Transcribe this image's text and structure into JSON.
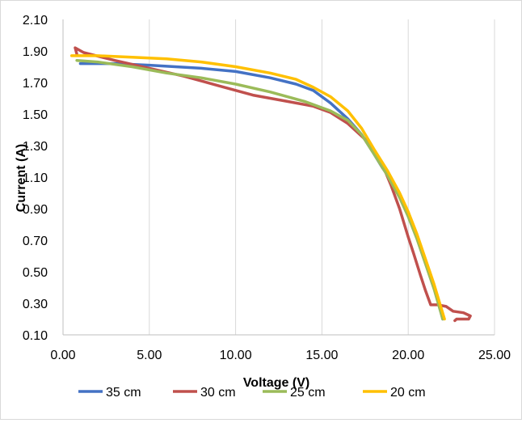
{
  "chart_data": {
    "type": "line",
    "title": "",
    "xlabel": "Voltage (V)",
    "ylabel": "Current (A)",
    "xlim": [
      0,
      25
    ],
    "ylim": [
      0.1,
      2.1
    ],
    "x_ticks": [
      "0.00",
      "5.00",
      "10.00",
      "15.00",
      "20.00",
      "25.00"
    ],
    "y_ticks": [
      "0.10",
      "0.30",
      "0.50",
      "0.70",
      "0.90",
      "1.10",
      "1.30",
      "1.50",
      "1.70",
      "1.90",
      "2.10"
    ],
    "grid": "vertical",
    "legend_position": "bottom",
    "series": [
      {
        "name": "35 cm",
        "color": "#4472c4",
        "x": [
          1.0,
          3.0,
          5.0,
          8.0,
          10.0,
          12.0,
          13.5,
          14.5,
          15.5,
          16.5,
          17.3,
          18.0,
          18.5,
          19.0,
          19.5,
          20.0,
          20.5,
          21.0,
          21.5,
          22.0
        ],
        "y": [
          1.82,
          1.82,
          1.81,
          1.79,
          1.77,
          1.73,
          1.69,
          1.65,
          1.57,
          1.47,
          1.37,
          1.25,
          1.16,
          1.08,
          0.98,
          0.86,
          0.72,
          0.57,
          0.41,
          0.2
        ]
      },
      {
        "name": "30 cm",
        "color": "#c0504d",
        "x": [
          0.8,
          0.7,
          1.2,
          3.0,
          5.0,
          7.0,
          9.0,
          11.0,
          13.0,
          14.5,
          15.5,
          16.5,
          17.5,
          18.5,
          19.0,
          19.5,
          20.0,
          20.3,
          20.7,
          21.0,
          21.3,
          21.7,
          22.2,
          22.6,
          23.2,
          23.6,
          23.5,
          22.8,
          22.7
        ],
        "y": [
          1.88,
          1.92,
          1.89,
          1.84,
          1.79,
          1.74,
          1.68,
          1.62,
          1.58,
          1.55,
          1.51,
          1.44,
          1.34,
          1.18,
          1.05,
          0.9,
          0.72,
          0.62,
          0.48,
          0.38,
          0.29,
          0.29,
          0.28,
          0.25,
          0.24,
          0.22,
          0.2,
          0.2,
          0.19
        ]
      },
      {
        "name": "25 cm",
        "color": "#9bbb59",
        "x": [
          0.8,
          2.0,
          4.0,
          6.0,
          8.0,
          10.0,
          12.0,
          14.0,
          15.5,
          16.5,
          17.3,
          18.0,
          18.8,
          19.5,
          20.0,
          20.5,
          21.0,
          21.5,
          22.0
        ],
        "y": [
          1.84,
          1.83,
          1.8,
          1.76,
          1.73,
          1.69,
          1.64,
          1.58,
          1.52,
          1.46,
          1.37,
          1.25,
          1.11,
          0.97,
          0.85,
          0.71,
          0.55,
          0.39,
          0.2
        ]
      },
      {
        "name": "20 cm",
        "color": "#ffc000",
        "x": [
          0.5,
          2.0,
          4.0,
          6.0,
          8.0,
          10.0,
          12.0,
          13.5,
          14.5,
          15.5,
          16.5,
          17.3,
          18.0,
          18.8,
          19.5,
          20.0,
          20.5,
          21.0,
          21.5,
          22.1
        ],
        "y": [
          1.87,
          1.87,
          1.86,
          1.85,
          1.83,
          1.8,
          1.76,
          1.72,
          1.67,
          1.61,
          1.52,
          1.41,
          1.28,
          1.14,
          1.0,
          0.88,
          0.74,
          0.58,
          0.42,
          0.2
        ]
      }
    ]
  }
}
